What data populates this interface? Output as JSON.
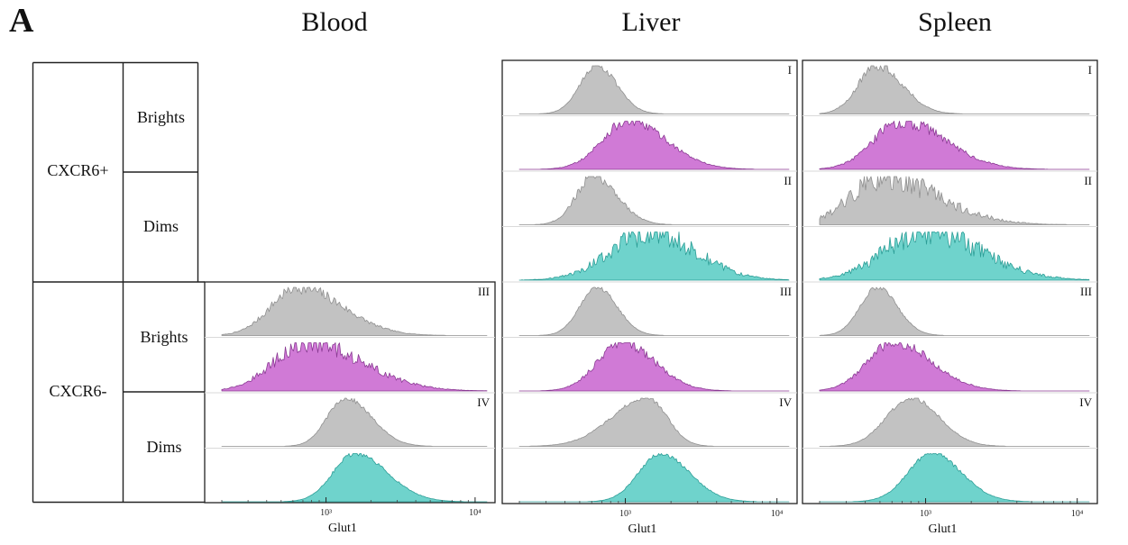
{
  "figure": {
    "panel_letter": "A",
    "column_titles": [
      "Blood",
      "Liver",
      "Spleen"
    ],
    "row_groups": [
      {
        "label": "CXCR6+",
        "subrows": [
          "Brights",
          "Dims"
        ]
      },
      {
        "label": "CXCR6-",
        "subrows": [
          "Brights",
          "Dims"
        ]
      }
    ]
  },
  "colors": {
    "control_fill": "#c2c2c2",
    "control_stroke": "#8f8f8f",
    "bright_fill": "#d07ad6",
    "bright_stroke": "#8a3a93",
    "dim_fill": "#6fd3cc",
    "dim_stroke": "#2b9d96"
  },
  "chart_data": [
    {
      "type": "area",
      "title": "Blood",
      "xlabel": "Glut1",
      "xscale": "log",
      "xlim": [
        200,
        12000
      ],
      "x_tick_labels": [
        "10³",
        "10⁴"
      ],
      "x_ticks": [
        1000,
        10000
      ],
      "gates": [
        {
          "label": "III",
          "population": "CXCR6- Brights",
          "histograms": [
            {
              "series": "control",
              "mode": 650,
              "spread": 0.22,
              "skew": 0.35,
              "noise": 0.14
            },
            {
              "series": "stained",
              "mode": 750,
              "spread": 0.27,
              "skew": 0.35,
              "noise": 0.2
            }
          ]
        },
        {
          "label": "IV",
          "population": "CXCR6- Dims",
          "histograms": [
            {
              "series": "control",
              "mode": 1350,
              "spread": 0.14,
              "skew": 0.25,
              "noise": 0.05
            },
            {
              "series": "stained",
              "mode": 1550,
              "spread": 0.17,
              "skew": 0.3,
              "noise": 0.05
            }
          ]
        }
      ]
    },
    {
      "type": "area",
      "title": "Liver",
      "xlabel": "Glut1",
      "xscale": "log",
      "xlim": [
        200,
        12000
      ],
      "x_tick_labels": [
        "10³",
        "10⁴"
      ],
      "x_ticks": [
        1000,
        10000
      ],
      "gates": [
        {
          "label": "I",
          "population": "CXCR6+ Brights",
          "histograms": [
            {
              "series": "control",
              "mode": 650,
              "spread": 0.12,
              "skew": 0.1,
              "noise": 0.07
            },
            {
              "series": "stained",
              "mode": 1050,
              "spread": 0.2,
              "skew": 0.25,
              "noise": 0.12
            }
          ]
        },
        {
          "label": "II",
          "population": "CXCR6+ Dims",
          "histograms": [
            {
              "series": "control",
              "mode": 620,
              "spread": 0.13,
              "skew": 0.2,
              "noise": 0.12
            },
            {
              "series": "stained",
              "mode": 1450,
              "spread": 0.27,
              "skew": 0.1,
              "noise": 0.28
            }
          ]
        },
        {
          "label": "III",
          "population": "CXCR6- Brights",
          "histograms": [
            {
              "series": "control",
              "mode": 650,
              "spread": 0.12,
              "skew": 0.1,
              "noise": 0.05
            },
            {
              "series": "stained",
              "mode": 950,
              "spread": 0.18,
              "skew": 0.2,
              "noise": 0.12
            }
          ]
        },
        {
          "label": "IV",
          "population": "CXCR6- Dims",
          "histograms": [
            {
              "series": "control",
              "mode": 1400,
              "spread": 0.2,
              "skew": -0.35,
              "noise": 0.05
            },
            {
              "series": "stained",
              "mode": 1700,
              "spread": 0.16,
              "skew": 0.2,
              "noise": 0.05
            }
          ]
        }
      ]
    },
    {
      "type": "area",
      "title": "Spleen",
      "xlabel": "Glut1",
      "xscale": "log",
      "xlim": [
        200,
        12000
      ],
      "x_tick_labels": [
        "10³",
        "10⁴"
      ],
      "x_ticks": [
        1000,
        10000
      ],
      "gates": [
        {
          "label": "I",
          "population": "CXCR6+ Brights",
          "histograms": [
            {
              "series": "control",
              "mode": 480,
              "spread": 0.14,
              "skew": 0.2,
              "noise": 0.1
            },
            {
              "series": "stained",
              "mode": 700,
              "spread": 0.22,
              "skew": 0.3,
              "noise": 0.15
            }
          ]
        },
        {
          "label": "II",
          "population": "CXCR6+ Dims",
          "histograms": [
            {
              "series": "control",
              "mode": 520,
              "spread": 0.26,
              "skew": 0.4,
              "noise": 0.3
            },
            {
              "series": "stained",
              "mode": 1000,
              "spread": 0.3,
              "skew": 0.2,
              "noise": 0.3
            }
          ]
        },
        {
          "label": "III",
          "population": "CXCR6- Brights",
          "histograms": [
            {
              "series": "control",
              "mode": 480,
              "spread": 0.12,
              "skew": 0.1,
              "noise": 0.05
            },
            {
              "series": "stained",
              "mode": 620,
              "spread": 0.2,
              "skew": 0.25,
              "noise": 0.12
            }
          ]
        },
        {
          "label": "IV",
          "population": "CXCR6- Dims",
          "histograms": [
            {
              "series": "control",
              "mode": 800,
              "spread": 0.17,
              "skew": 0.1,
              "noise": 0.05
            },
            {
              "series": "stained",
              "mode": 1100,
              "spread": 0.17,
              "skew": 0.15,
              "noise": 0.05
            }
          ]
        }
      ]
    }
  ]
}
